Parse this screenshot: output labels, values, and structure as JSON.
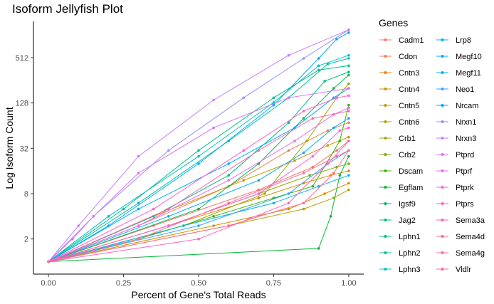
{
  "chart_data": {
    "type": "line",
    "title": "Isoform Jellyfish Plot",
    "xlabel": "Percent of Gene's Total Reads",
    "ylabel": "Log Isoform Count",
    "xlim": [
      -0.05,
      1.05
    ],
    "ylim_log2": [
      -0.55,
      10.6
    ],
    "y_scale": "log2",
    "x_ticks": [
      0,
      0.25,
      0.5,
      0.75,
      1
    ],
    "x_tick_labels": [
      "0.00",
      "0.25",
      "0.50",
      "0.75",
      "1.00"
    ],
    "y_ticks": [
      2,
      8,
      32,
      128,
      512
    ],
    "y_tick_labels": [
      "2",
      "8",
      "32",
      "128",
      "512"
    ],
    "grid": false,
    "legend": {
      "title": "Genes",
      "position": "right",
      "columns": 2
    },
    "series": [
      {
        "name": "Cadm1",
        "color": "#F8766D",
        "points": [
          [
            0,
            1
          ],
          [
            0.35,
            3
          ],
          [
            0.7,
            9
          ],
          [
            0.88,
            18
          ],
          [
            0.96,
            30
          ],
          [
            1,
            40
          ]
        ]
      },
      {
        "name": "Cdon",
        "color": "#F07E4F",
        "points": [
          [
            0,
            1
          ],
          [
            0.3,
            3
          ],
          [
            0.6,
            10
          ],
          [
            0.8,
            30
          ],
          [
            0.93,
            55
          ],
          [
            1,
            70
          ]
        ]
      },
      {
        "name": "Cntn3",
        "color": "#E58700",
        "points": [
          [
            0,
            1
          ],
          [
            0.4,
            3
          ],
          [
            0.7,
            7
          ],
          [
            0.85,
            11
          ],
          [
            0.94,
            14
          ],
          [
            1,
            16
          ]
        ]
      },
      {
        "name": "Cntn4",
        "color": "#D39200",
        "points": [
          [
            0,
            1
          ],
          [
            0.55,
            3
          ],
          [
            0.8,
            5
          ],
          [
            0.92,
            8
          ],
          [
            1,
            11
          ]
        ]
      },
      {
        "name": "Cntn5",
        "color": "#C99800",
        "points": [
          [
            0,
            1
          ],
          [
            0.35,
            4
          ],
          [
            0.65,
            12
          ],
          [
            0.82,
            22
          ],
          [
            0.93,
            35
          ],
          [
            1,
            45
          ]
        ]
      },
      {
        "name": "Cntn6",
        "color": "#B79F00",
        "points": [
          [
            0,
            1
          ],
          [
            0.6,
            3
          ],
          [
            0.85,
            5
          ],
          [
            0.95,
            7
          ],
          [
            1,
            9
          ]
        ]
      },
      {
        "name": "Crb1",
        "color": "#A3A500",
        "points": [
          [
            0,
            1
          ],
          [
            0.45,
            3
          ],
          [
            0.72,
            8
          ],
          [
            0.86,
            40
          ],
          [
            0.96,
            150
          ],
          [
            1,
            230
          ]
        ]
      },
      {
        "name": "Crb2",
        "color": "#7CAE00",
        "points": [
          [
            0,
            1
          ],
          [
            0.4,
            3
          ],
          [
            0.7,
            8
          ],
          [
            0.87,
            14
          ],
          [
            0.96,
            18
          ],
          [
            1,
            20
          ]
        ]
      },
      {
        "name": "Dscam",
        "color": "#39B600",
        "points": [
          [
            0,
            1
          ],
          [
            0.3,
            2
          ],
          [
            0.55,
            4
          ],
          [
            0.75,
            7
          ],
          [
            0.88,
            10
          ],
          [
            0.97,
            40
          ],
          [
            1,
            120
          ]
        ]
      },
      {
        "name": "Egflam",
        "color": "#00BA38",
        "points": [
          [
            0,
            1
          ],
          [
            0.9,
            1.5
          ],
          [
            0.94,
            4
          ],
          [
            0.97,
            14
          ],
          [
            1,
            25
          ]
        ]
      },
      {
        "name": "Igsf9",
        "color": "#00BB4E",
        "points": [
          [
            0,
            1
          ],
          [
            0.5,
            5
          ],
          [
            0.7,
            20
          ],
          [
            0.85,
            80
          ],
          [
            0.95,
            200
          ],
          [
            1,
            300
          ]
        ]
      },
      {
        "name": "Jag2",
        "color": "#00BF7D",
        "points": [
          [
            0,
            1
          ],
          [
            0.35,
            4
          ],
          [
            0.6,
            14
          ],
          [
            0.8,
            70
          ],
          [
            0.92,
            250
          ],
          [
            1,
            330
          ]
        ]
      },
      {
        "name": "Lphn1",
        "color": "#00C08B",
        "points": [
          [
            0,
            1
          ],
          [
            0.25,
            5
          ],
          [
            0.5,
            30
          ],
          [
            0.75,
            150
          ],
          [
            0.9,
            350
          ],
          [
            1,
            400
          ]
        ]
      },
      {
        "name": "Lphn2",
        "color": "#00C1A3",
        "points": [
          [
            0,
            1
          ],
          [
            0.3,
            6
          ],
          [
            0.6,
            40
          ],
          [
            0.8,
            150
          ],
          [
            0.93,
            420
          ],
          [
            1,
            500
          ]
        ]
      },
      {
        "name": "Lphn3",
        "color": "#00BFC4",
        "points": [
          [
            0,
            1
          ],
          [
            0.2,
            4
          ],
          [
            0.5,
            25
          ],
          [
            0.75,
            130
          ],
          [
            0.9,
            400
          ],
          [
            1,
            550
          ]
        ]
      },
      {
        "name": "Lrp8",
        "color": "#00B8E7",
        "points": [
          [
            0,
            1
          ],
          [
            0.45,
            3
          ],
          [
            0.75,
            6
          ],
          [
            0.9,
            10
          ],
          [
            1,
            14
          ]
        ]
      },
      {
        "name": "Megf10",
        "color": "#00ADFA",
        "points": [
          [
            0,
            1
          ],
          [
            0.4,
            4
          ],
          [
            0.7,
            12
          ],
          [
            0.85,
            28
          ],
          [
            0.95,
            60
          ],
          [
            1,
            80
          ]
        ]
      },
      {
        "name": "Megf11",
        "color": "#00B0F6",
        "points": [
          [
            0,
            1
          ],
          [
            0.3,
            5
          ],
          [
            0.6,
            20
          ],
          [
            0.82,
            60
          ],
          [
            0.95,
            150
          ],
          [
            1,
            200
          ]
        ]
      },
      {
        "name": "Neo1",
        "color": "#35A2FF",
        "points": [
          [
            0,
            1
          ],
          [
            0.5,
            3
          ],
          [
            0.8,
            8
          ],
          [
            0.93,
            20
          ],
          [
            1,
            30
          ]
        ]
      },
      {
        "name": "Nrcam",
        "color": "#00A9FF",
        "points": [
          [
            0,
            1
          ],
          [
            0.2,
            3
          ],
          [
            0.5,
            20
          ],
          [
            0.75,
            120
          ],
          [
            0.9,
            500
          ],
          [
            0.96,
            900
          ],
          [
            1,
            1100
          ]
        ]
      },
      {
        "name": "Nrxn1",
        "color": "#9590FF",
        "points": [
          [
            0,
            1
          ],
          [
            0.15,
            4
          ],
          [
            0.4,
            30
          ],
          [
            0.65,
            150
          ],
          [
            0.85,
            500
          ],
          [
            1,
            1200
          ]
        ]
      },
      {
        "name": "Nrxn3",
        "color": "#C77CFF",
        "points": [
          [
            0,
            1
          ],
          [
            0.1,
            3
          ],
          [
            0.3,
            25
          ],
          [
            0.55,
            140
          ],
          [
            0.8,
            550
          ],
          [
            1,
            1200
          ]
        ]
      },
      {
        "name": "Ptprd",
        "color": "#DC71FA",
        "points": [
          [
            0,
            1
          ],
          [
            0.08,
            2
          ],
          [
            0.15,
            4
          ],
          [
            0.3,
            15
          ],
          [
            0.55,
            60
          ],
          [
            0.8,
            150
          ],
          [
            1,
            200
          ]
        ]
      },
      {
        "name": "Ptprf",
        "color": "#E76BF3",
        "points": [
          [
            0,
            1
          ],
          [
            0.3,
            3
          ],
          [
            0.6,
            12
          ],
          [
            0.82,
            40
          ],
          [
            0.95,
            90
          ],
          [
            1,
            110
          ]
        ]
      },
      {
        "name": "Ptprk",
        "color": "#F564E3",
        "points": [
          [
            0,
            1
          ],
          [
            0.4,
            3
          ],
          [
            0.7,
            8
          ],
          [
            0.88,
            25
          ],
          [
            0.97,
            55
          ],
          [
            1,
            60
          ]
        ]
      },
      {
        "name": "Ptprs",
        "color": "#FD61D1",
        "points": [
          [
            0,
            1
          ],
          [
            0.35,
            5
          ],
          [
            0.65,
            30
          ],
          [
            0.85,
            100
          ],
          [
            0.96,
            150
          ],
          [
            1,
            160
          ]
        ]
      },
      {
        "name": "Sema3a",
        "color": "#FF62BC",
        "points": [
          [
            0,
            1
          ],
          [
            0.5,
            2
          ],
          [
            0.8,
            6
          ],
          [
            0.93,
            20
          ],
          [
            1,
            40
          ]
        ]
      },
      {
        "name": "Sema4d",
        "color": "#FF6C90",
        "points": [
          [
            0,
            1
          ],
          [
            0.6,
            3
          ],
          [
            0.85,
            6
          ],
          [
            0.95,
            15
          ],
          [
            1,
            30
          ]
        ]
      },
      {
        "name": "Sema4g",
        "color": "#FF69A4",
        "points": [
          [
            0,
            1
          ],
          [
            0.4,
            5
          ],
          [
            0.7,
            30
          ],
          [
            0.88,
            80
          ],
          [
            1,
            100
          ]
        ]
      },
      {
        "name": "Vldlr",
        "color": "#FF6A98",
        "points": [
          [
            0,
            1
          ],
          [
            0.3,
            2
          ],
          [
            0.6,
            6
          ],
          [
            0.85,
            15
          ],
          [
            0.96,
            25
          ],
          [
            1,
            30
          ]
        ]
      }
    ]
  }
}
